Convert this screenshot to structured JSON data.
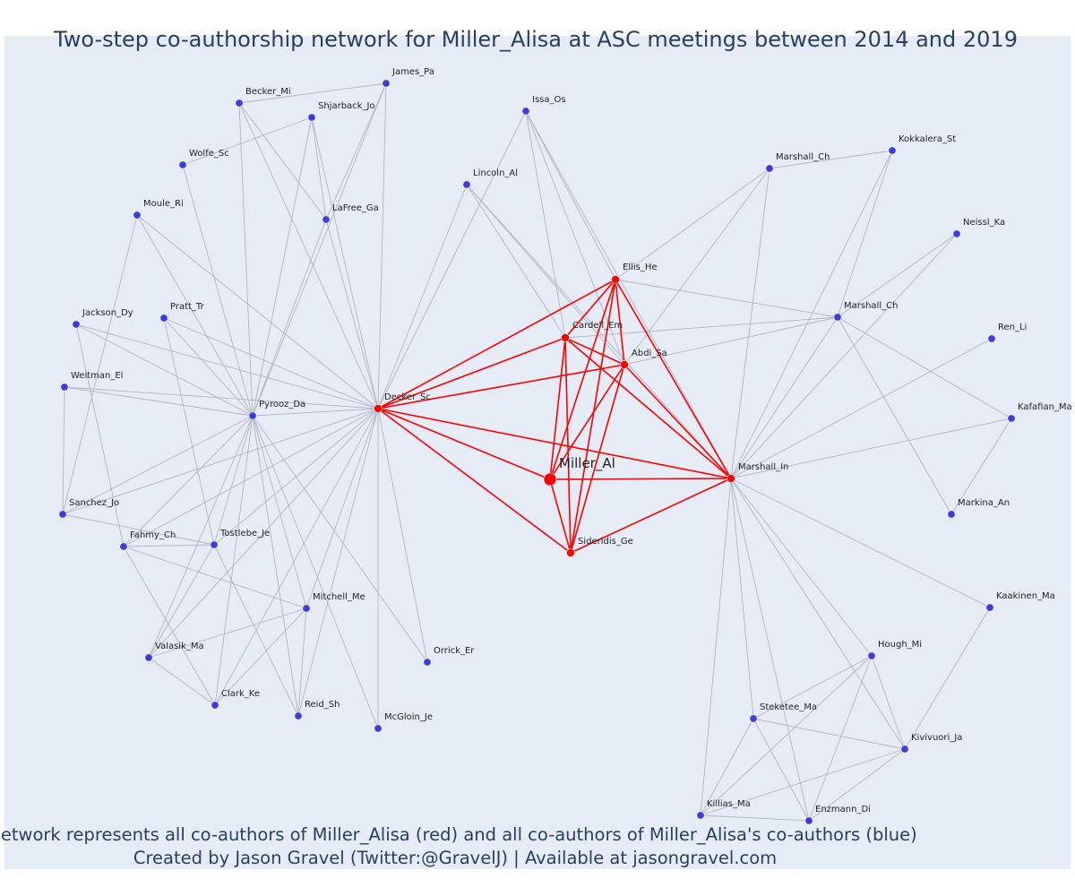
{
  "title": "Two-step co-authorship network for Miller_Alisa at ASC meetings between 2014 and 2019",
  "caption": {
    "line1": "Network represents all co-authors of Miller_Alisa (red) and all co-authors of Miller_Alisa's co-authors (blue)",
    "line2": "Created by Jason Gravel (Twitter:@GravelJ) | Available at jasongravel.com"
  },
  "colors": {
    "background": "#e5ecf6",
    "first_step": "#ff0000",
    "second_step": "#3c3ce6",
    "edge_second": "#b4b4c3"
  },
  "nodes": [
    {
      "id": "Miller_Al",
      "group": "focal"
    },
    {
      "id": "Decker_Sc",
      "group": "red"
    },
    {
      "id": "Ellis_He",
      "group": "red"
    },
    {
      "id": "Cardell_Em",
      "group": "red"
    },
    {
      "id": "Abdi_Sa",
      "group": "red"
    },
    {
      "id": "Marshall_In",
      "group": "red"
    },
    {
      "id": "Sideridis_Ge",
      "group": "red"
    },
    {
      "id": "Pyrooz_Da",
      "group": "blue"
    },
    {
      "id": "James_Pa",
      "group": "blue"
    },
    {
      "id": "Becker_Mi",
      "group": "blue"
    },
    {
      "id": "Shjarback_Jo",
      "group": "blue"
    },
    {
      "id": "Wolfe_Sc",
      "group": "blue"
    },
    {
      "id": "LaFree_Ga",
      "group": "blue"
    },
    {
      "id": "Moule_Ri",
      "group": "blue"
    },
    {
      "id": "Jackson_Dy",
      "group": "blue"
    },
    {
      "id": "Pratt_Tr",
      "group": "blue"
    },
    {
      "id": "Weitman_El",
      "group": "blue"
    },
    {
      "id": "Sanchez_Jo",
      "group": "blue"
    },
    {
      "id": "Fahmy_Ch",
      "group": "blue"
    },
    {
      "id": "Tostlebe_Je",
      "group": "blue"
    },
    {
      "id": "Mitchell_Me",
      "group": "blue"
    },
    {
      "id": "Valasik_Ma",
      "group": "blue"
    },
    {
      "id": "Orrick_Er",
      "group": "blue"
    },
    {
      "id": "Clark_Ke",
      "group": "blue"
    },
    {
      "id": "Reid_Sh",
      "group": "blue"
    },
    {
      "id": "McGloin_Je",
      "group": "blue"
    },
    {
      "id": "Issa_Os",
      "group": "blue"
    },
    {
      "id": "Lincoln_Al",
      "group": "blue"
    },
    {
      "id": "Marshall_Ch_1",
      "label": "Marshall_Ch",
      "group": "blue"
    },
    {
      "id": "Kokkalera_St",
      "group": "blue"
    },
    {
      "id": "Neissl_Ka",
      "group": "blue"
    },
    {
      "id": "Marshall_Ch_2",
      "label": "Marshall_Ch",
      "group": "blue"
    },
    {
      "id": "Ren_Li",
      "group": "blue"
    },
    {
      "id": "Kafafian_Ma",
      "group": "blue"
    },
    {
      "id": "Markina_An",
      "group": "blue"
    },
    {
      "id": "Kaakinen_Ma",
      "group": "blue"
    },
    {
      "id": "Hough_Mi",
      "group": "blue"
    },
    {
      "id": "Steketee_Ma",
      "group": "blue"
    },
    {
      "id": "Kivivuori_Ja",
      "group": "blue"
    },
    {
      "id": "Killias_Ma",
      "group": "blue"
    },
    {
      "id": "Enzmann_Di",
      "group": "blue"
    }
  ],
  "edges": [
    [
      "Miller_Al",
      "Decker_Sc"
    ],
    [
      "Miller_Al",
      "Ellis_He"
    ],
    [
      "Miller_Al",
      "Cardell_Em"
    ],
    [
      "Miller_Al",
      "Abdi_Sa"
    ],
    [
      "Miller_Al",
      "Marshall_In"
    ],
    [
      "Miller_Al",
      "Sideridis_Ge"
    ],
    [
      "Decker_Sc",
      "Ellis_He"
    ],
    [
      "Decker_Sc",
      "Cardell_Em"
    ],
    [
      "Decker_Sc",
      "Abdi_Sa"
    ],
    [
      "Decker_Sc",
      "Marshall_In"
    ],
    [
      "Decker_Sc",
      "Sideridis_Ge"
    ],
    [
      "Ellis_He",
      "Cardell_Em"
    ],
    [
      "Ellis_He",
      "Abdi_Sa"
    ],
    [
      "Ellis_He",
      "Marshall_In"
    ],
    [
      "Ellis_He",
      "Sideridis_Ge"
    ],
    [
      "Cardell_Em",
      "Abdi_Sa"
    ],
    [
      "Cardell_Em",
      "Marshall_In"
    ],
    [
      "Cardell_Em",
      "Sideridis_Ge"
    ],
    [
      "Abdi_Sa",
      "Marshall_In"
    ],
    [
      "Abdi_Sa",
      "Sideridis_Ge"
    ],
    [
      "Marshall_In",
      "Sideridis_Ge"
    ],
    [
      "Decker_Sc",
      "Pyrooz_Da"
    ],
    [
      "Decker_Sc",
      "James_Pa"
    ],
    [
      "Decker_Sc",
      "Becker_Mi"
    ],
    [
      "Decker_Sc",
      "Shjarback_Jo"
    ],
    [
      "Decker_Sc",
      "LaFree_Ga"
    ],
    [
      "Decker_Sc",
      "Moule_Ri"
    ],
    [
      "Decker_Sc",
      "Jackson_Dy"
    ],
    [
      "Decker_Sc",
      "Pratt_Tr"
    ],
    [
      "Decker_Sc",
      "Weitman_El"
    ],
    [
      "Decker_Sc",
      "Sanchez_Jo"
    ],
    [
      "Decker_Sc",
      "Fahmy_Ch"
    ],
    [
      "Decker_Sc",
      "Tostlebe_Je"
    ],
    [
      "Decker_Sc",
      "Mitchell_Me"
    ],
    [
      "Decker_Sc",
      "Valasik_Ma"
    ],
    [
      "Decker_Sc",
      "Orrick_Er"
    ],
    [
      "Decker_Sc",
      "Clark_Ke"
    ],
    [
      "Decker_Sc",
      "Reid_Sh"
    ],
    [
      "Decker_Sc",
      "McGloin_Je"
    ],
    [
      "Decker_Sc",
      "Issa_Os"
    ],
    [
      "Decker_Sc",
      "Lincoln_Al"
    ],
    [
      "Pyrooz_Da",
      "James_Pa"
    ],
    [
      "Pyrooz_Da",
      "Becker_Mi"
    ],
    [
      "Pyrooz_Da",
      "Shjarback_Jo"
    ],
    [
      "Pyrooz_Da",
      "Wolfe_Sc"
    ],
    [
      "Pyrooz_Da",
      "LaFree_Ga"
    ],
    [
      "Pyrooz_Da",
      "Moule_Ri"
    ],
    [
      "Pyrooz_Da",
      "Jackson_Dy"
    ],
    [
      "Pyrooz_Da",
      "Pratt_Tr"
    ],
    [
      "Pyrooz_Da",
      "Weitman_El"
    ],
    [
      "Pyrooz_Da",
      "Sanchez_Jo"
    ],
    [
      "Pyrooz_Da",
      "Fahmy_Ch"
    ],
    [
      "Pyrooz_Da",
      "Tostlebe_Je"
    ],
    [
      "Pyrooz_Da",
      "Mitchell_Me"
    ],
    [
      "Pyrooz_Da",
      "Valasik_Ma"
    ],
    [
      "Pyrooz_Da",
      "Orrick_Er"
    ],
    [
      "Pyrooz_Da",
      "Clark_Ke"
    ],
    [
      "Pyrooz_Da",
      "Reid_Sh"
    ],
    [
      "Pyrooz_Da",
      "McGloin_Je"
    ],
    [
      "Becker_Mi",
      "James_Pa"
    ],
    [
      "Becker_Mi",
      "LaFree_Ga"
    ],
    [
      "Shjarback_Jo",
      "Wolfe_Sc"
    ],
    [
      "Shjarback_Jo",
      "LaFree_Ga"
    ],
    [
      "James_Pa",
      "LaFree_Ga"
    ],
    [
      "Moule_Ri",
      "Sanchez_Jo"
    ],
    [
      "Jackson_Dy",
      "Fahmy_Ch"
    ],
    [
      "Weitman_El",
      "Sanchez_Jo"
    ],
    [
      "Sanchez_Jo",
      "Tostlebe_Je"
    ],
    [
      "Fahmy_Ch",
      "Tostlebe_Je"
    ],
    [
      "Fahmy_Ch",
      "Mitchell_Me"
    ],
    [
      "Fahmy_Ch",
      "Clark_Ke"
    ],
    [
      "Pratt_Tr",
      "Tostlebe_Je"
    ],
    [
      "Tostlebe_Je",
      "Valasik_Ma"
    ],
    [
      "Tostlebe_Je",
      "Reid_Sh"
    ],
    [
      "Mitchell_Me",
      "Valasik_Ma"
    ],
    [
      "Mitchell_Me",
      "Clark_Ke"
    ],
    [
      "Mitchell_Me",
      "Reid_Sh"
    ],
    [
      "Valasik_Ma",
      "Clark_Ke"
    ],
    [
      "Issa_Os",
      "Cardell_Em"
    ],
    [
      "Issa_Os",
      "Abdi_Sa"
    ],
    [
      "Issa_Os",
      "Ellis_He"
    ],
    [
      "Issa_Os",
      "Marshall_In"
    ],
    [
      "Lincoln_Al",
      "Cardell_Em"
    ],
    [
      "Lincoln_Al",
      "Abdi_Sa"
    ],
    [
      "Lincoln_Al",
      "Marshall_In"
    ],
    [
      "Ellis_He",
      "Marshall_Ch_1"
    ],
    [
      "Ellis_He",
      "Marshall_Ch_2"
    ],
    [
      "Abdi_Sa",
      "Marshall_Ch_1"
    ],
    [
      "Abdi_Sa",
      "Marshall_Ch_2"
    ],
    [
      "Cardell_Em",
      "Marshall_Ch_2"
    ],
    [
      "Marshall_In",
      "Marshall_Ch_1"
    ],
    [
      "Marshall_In",
      "Kokkalera_St"
    ],
    [
      "Marshall_In",
      "Neissl_Ka"
    ],
    [
      "Marshall_In",
      "Marshall_Ch_2"
    ],
    [
      "Marshall_In",
      "Ren_Li"
    ],
    [
      "Marshall_In",
      "Kafafian_Ma"
    ],
    [
      "Marshall_In",
      "Kaakinen_Ma"
    ],
    [
      "Marshall_In",
      "Hough_Mi"
    ],
    [
      "Marshall_In",
      "Steketee_Ma"
    ],
    [
      "Marshall_In",
      "Kivivuori_Ja"
    ],
    [
      "Marshall_In",
      "Killias_Ma"
    ],
    [
      "Marshall_In",
      "Enzmann_Di"
    ],
    [
      "Marshall_Ch_1",
      "Kokkalera_St"
    ],
    [
      "Marshall_Ch_2",
      "Kokkalera_St"
    ],
    [
      "Marshall_Ch_2",
      "Neissl_Ka"
    ],
    [
      "Marshall_Ch_2",
      "Markina_An"
    ],
    [
      "Marshall_Ch_2",
      "Kafafian_Ma"
    ],
    [
      "Kafafian_Ma",
      "Markina_An"
    ],
    [
      "Kaakinen_Ma",
      "Kivivuori_Ja"
    ],
    [
      "Hough_Mi",
      "Steketee_Ma"
    ],
    [
      "Hough_Mi",
      "Killias_Ma"
    ],
    [
      "Hough_Mi",
      "Enzmann_Di"
    ],
    [
      "Hough_Mi",
      "Kivivuori_Ja"
    ],
    [
      "Steketee_Ma",
      "Killias_Ma"
    ],
    [
      "Steketee_Ma",
      "Enzmann_Di"
    ],
    [
      "Steketee_Ma",
      "Kivivuori_Ja"
    ],
    [
      "Killias_Ma",
      "Enzmann_Di"
    ],
    [
      "Killias_Ma",
      "Kivivuori_Ja"
    ],
    [
      "Enzmann_Di",
      "Kivivuori_Ja"
    ]
  ]
}
